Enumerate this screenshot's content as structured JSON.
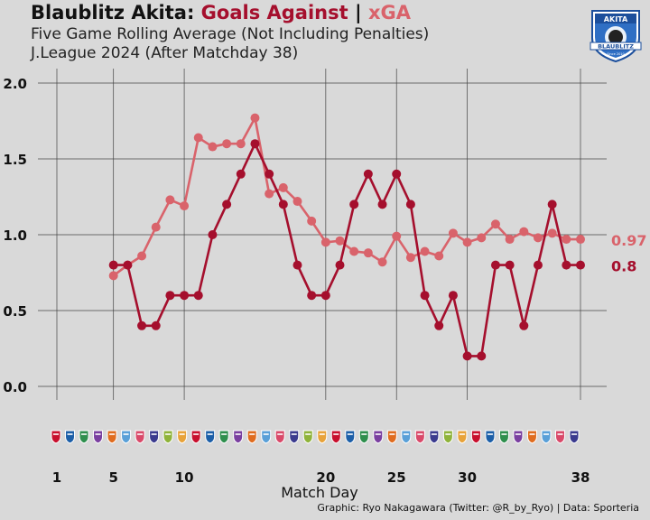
{
  "header": {
    "team": "Blaublitz Akita:",
    "goals_against": "Goals Against",
    "sep": "|",
    "xga": "xGA",
    "subtitle1": "Five Game Rolling Average (Not Including Penalties)",
    "subtitle2": "J.League 2024 (After Matchday 38)"
  },
  "crest": {
    "top_text": "AKITA",
    "band_text": "BLAUBLITZ",
    "small_text": "Since 2010"
  },
  "footer": {
    "credit": "Graphic: Ryo Nakagawara (Twitter: @R_by_Ryo) | Data: Sporteria"
  },
  "colors": {
    "goals_against": "#a50f2d",
    "xga": "#d9636b",
    "background": "#d9d9d9"
  },
  "chart_data": {
    "type": "line",
    "xlabel": "Match Day",
    "ylabel": "",
    "xlim": [
      1,
      38
    ],
    "ylim": [
      0,
      2
    ],
    "x_ticks": [
      1,
      5,
      10,
      20,
      25,
      30,
      38
    ],
    "y_ticks": [
      "0.0",
      "0.5",
      "1.0",
      "1.5",
      "2.0"
    ],
    "y_tick_values": [
      0,
      0.5,
      1,
      1.5,
      2
    ],
    "grid": true,
    "x": [
      5,
      6,
      7,
      8,
      9,
      10,
      11,
      12,
      13,
      14,
      15,
      16,
      17,
      18,
      19,
      20,
      21,
      22,
      23,
      24,
      25,
      26,
      27,
      28,
      29,
      30,
      31,
      32,
      33,
      34,
      35,
      36,
      37,
      38
    ],
    "series": [
      {
        "name": "xGA",
        "color": "#d9636b",
        "end_label": "0.97",
        "values": [
          0.73,
          0.8,
          0.86,
          1.05,
          1.23,
          1.19,
          1.64,
          1.58,
          1.6,
          1.6,
          1.77,
          1.27,
          1.31,
          1.22,
          1.09,
          0.95,
          0.96,
          0.89,
          0.88,
          0.82,
          0.99,
          0.85,
          0.89,
          0.86,
          1.01,
          0.95,
          0.98,
          1.07,
          0.97,
          1.02,
          0.98,
          1.01,
          0.97,
          0.97
        ]
      },
      {
        "name": "Goals Against",
        "color": "#a50f2d",
        "end_label": "0.8",
        "values": [
          0.8,
          0.8,
          0.4,
          0.4,
          0.6,
          0.6,
          0.6,
          1.0,
          1.2,
          1.4,
          1.6,
          1.4,
          1.2,
          0.8,
          0.6,
          0.6,
          0.8,
          1.2,
          1.4,
          1.2,
          1.4,
          1.2,
          0.6,
          0.4,
          0.6,
          0.2,
          0.2,
          0.8,
          0.8,
          0.4,
          0.8,
          1.2,
          0.8,
          0.8
        ]
      }
    ],
    "opponent_logo_count": 38
  }
}
